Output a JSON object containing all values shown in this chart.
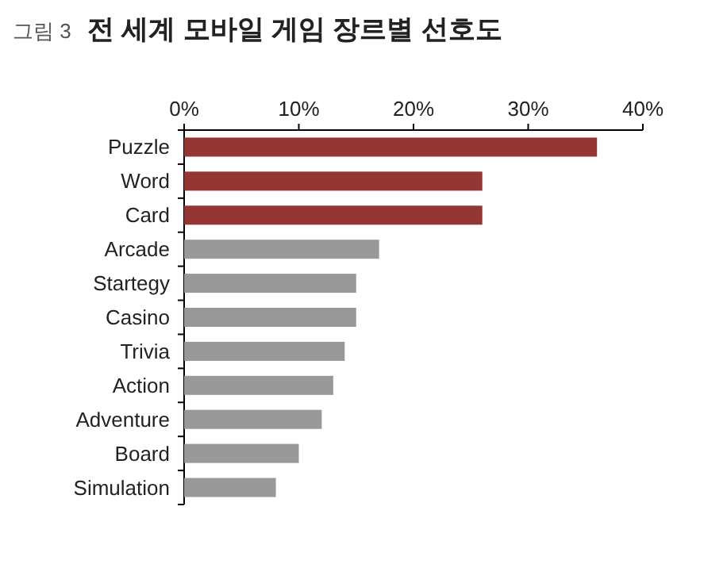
{
  "chart_data": {
    "type": "bar",
    "orientation": "horizontal",
    "title": "전 세계 모바일 게임 장르별 선호도",
    "annotations": [
      "그림 3"
    ],
    "categories": [
      "Puzzle",
      "Word",
      "Card",
      "Arcade",
      "Startegy",
      "Casino",
      "Trivia",
      "Action",
      "Adventure",
      "Board",
      "Simulation"
    ],
    "values": [
      36,
      26,
      26,
      17,
      15,
      15,
      14,
      13,
      12,
      10,
      8
    ],
    "colors": [
      "#943634",
      "#943634",
      "#943634",
      "#999999",
      "#999999",
      "#999999",
      "#999999",
      "#999999",
      "#999999",
      "#999999",
      "#999999"
    ],
    "xlim": [
      0,
      40
    ],
    "xticks": [
      {
        "value": 0,
        "label": "0%"
      },
      {
        "value": 10,
        "label": "10%"
      },
      {
        "value": 20,
        "label": "20%"
      },
      {
        "value": 30,
        "label": "30%"
      },
      {
        "value": 40,
        "label": "40%"
      }
    ]
  }
}
